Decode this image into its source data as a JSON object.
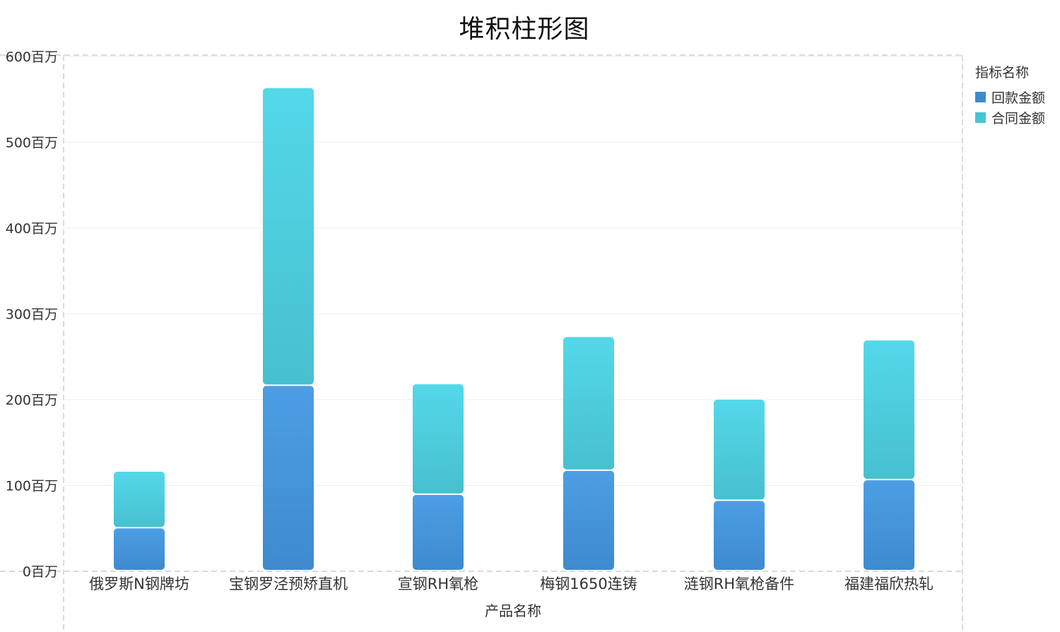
{
  "chart_data": {
    "type": "bar",
    "stacked": true,
    "title": "堆积柱形图",
    "xlabel": "产品名称",
    "ylabel": "",
    "categories": [
      "俄罗斯N钢牌坊",
      "宝钢罗泾预矫直机",
      "宣钢RH氧枪",
      "梅钢1650连铸",
      "涟钢RH氧枪备件",
      "福建福欣热轧"
    ],
    "series": [
      {
        "name": "回款金额",
        "values": [
          50,
          216,
          89,
          117,
          82,
          106
        ],
        "color": "#4a90d9"
      },
      {
        "name": "合同金额",
        "values": [
          66,
          347,
          129,
          156,
          118,
          163
        ],
        "color": "#4ec9d9"
      }
    ],
    "ylim": [
      0,
      600
    ],
    "yticks": [
      0,
      100,
      200,
      300,
      400,
      500,
      600
    ],
    "ytick_suffix": "百万",
    "legend": {
      "title": "指标名称",
      "position": "top-right"
    },
    "grid": true
  }
}
